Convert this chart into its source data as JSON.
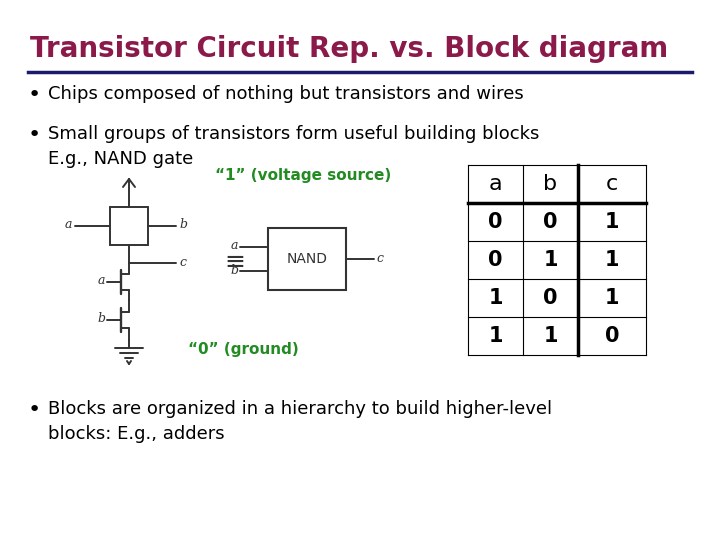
{
  "title": "Transistor Circuit Rep. vs. Block diagram",
  "title_color": "#8B1A4A",
  "title_fontsize": 20,
  "separator_color": "#1a1a6e",
  "bg_color": "#ffffff",
  "bullet_fontsize": 13,
  "bullet_color": "#000000",
  "voltage_label": "“1” (voltage source)",
  "ground_label": "“0” (ground)",
  "label_color": "#228B22",
  "table_headers": [
    "a",
    "b",
    "c"
  ],
  "table_data": [
    [
      "0",
      "0",
      "1"
    ],
    [
      "0",
      "1",
      "1"
    ],
    [
      "1",
      "0",
      "1"
    ],
    [
      "1",
      "1",
      "0"
    ]
  ],
  "table_fontsize": 15,
  "table_header_fontsize": 16,
  "circuit_color": "#333333",
  "nand_box_color": "#444444"
}
